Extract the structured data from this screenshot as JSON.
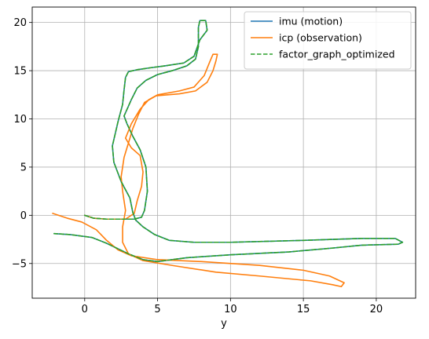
{
  "chart_data": {
    "type": "line",
    "title": "",
    "xlabel": "y",
    "ylabel": "",
    "xlim": [
      -3.6,
      22.7
    ],
    "ylim": [
      -8.6,
      21.6
    ],
    "xticks": [
      0,
      5,
      10,
      15,
      20
    ],
    "yticks": [
      -5,
      0,
      5,
      10,
      15,
      20
    ],
    "grid": true,
    "legend_position": "top-right",
    "series": [
      {
        "name": "imu (motion)",
        "color": "#1f77b4",
        "dashed": false,
        "points": [
          [
            0,
            0
          ],
          [
            0.6,
            -0.3
          ],
          [
            1.5,
            -0.4
          ],
          [
            2.5,
            -0.4
          ],
          [
            3.4,
            -0.4
          ],
          [
            3.9,
            -0.2
          ],
          [
            4.1,
            0.5
          ],
          [
            4.3,
            2.5
          ],
          [
            4.2,
            5.0
          ],
          [
            3.8,
            6.8
          ],
          [
            3.3,
            8.2
          ],
          [
            2.9,
            9.5
          ],
          [
            2.7,
            10.3
          ],
          [
            3.2,
            12.0
          ],
          [
            3.6,
            13.2
          ],
          [
            4.2,
            14.0
          ],
          [
            5.0,
            14.6
          ],
          [
            6.0,
            15.0
          ],
          [
            7.0,
            15.5
          ],
          [
            7.6,
            16.2
          ],
          [
            7.8,
            17.5
          ],
          [
            7.8,
            19.5
          ],
          [
            7.9,
            20.2
          ],
          [
            8.3,
            20.2
          ],
          [
            8.4,
            19.2
          ],
          [
            7.9,
            18.2
          ],
          [
            7.5,
            16.5
          ],
          [
            6.8,
            15.8
          ],
          [
            5.5,
            15.5
          ],
          [
            4.5,
            15.3
          ],
          [
            3.6,
            15.1
          ],
          [
            3.0,
            14.9
          ],
          [
            2.8,
            14.3
          ],
          [
            2.7,
            13.0
          ],
          [
            2.6,
            11.5
          ],
          [
            2.3,
            9.8
          ],
          [
            2.1,
            8.5
          ],
          [
            1.9,
            7.2
          ],
          [
            2.0,
            5.5
          ],
          [
            2.5,
            3.5
          ],
          [
            3.1,
            1.8
          ],
          [
            3.3,
            0.3
          ],
          [
            3.5,
            -0.5
          ],
          [
            4.0,
            -1.2
          ],
          [
            4.8,
            -2.0
          ],
          [
            5.8,
            -2.6
          ],
          [
            7.5,
            -2.8
          ],
          [
            10,
            -2.8
          ],
          [
            15,
            -2.6
          ],
          [
            19,
            -2.4
          ],
          [
            21.3,
            -2.4
          ],
          [
            21.8,
            -2.8
          ],
          [
            21.5,
            -3.0
          ],
          [
            19,
            -3.1
          ],
          [
            17,
            -3.4
          ],
          [
            14,
            -3.8
          ],
          [
            10,
            -4.1
          ],
          [
            7,
            -4.4
          ],
          [
            5.0,
            -4.8
          ],
          [
            4.0,
            -4.6
          ],
          [
            3.0,
            -4.0
          ],
          [
            1.5,
            -2.9
          ],
          [
            0.5,
            -2.3
          ],
          [
            -1,
            -2.0
          ],
          [
            -2.1,
            -1.9
          ]
        ]
      },
      {
        "name": "icp (observation)",
        "color": "#ff7f0e",
        "dashed": false,
        "points": [
          [
            -2.2,
            0.2
          ],
          [
            -1.2,
            -0.3
          ],
          [
            -0.2,
            -0.7
          ],
          [
            0.8,
            -1.5
          ],
          [
            1.5,
            -2.6
          ],
          [
            2.3,
            -3.6
          ],
          [
            3.2,
            -4.2
          ],
          [
            5,
            -4.6
          ],
          [
            8,
            -4.8
          ],
          [
            12,
            -5.2
          ],
          [
            15,
            -5.7
          ],
          [
            16.8,
            -6.3
          ],
          [
            17.8,
            -7.0
          ],
          [
            17.6,
            -7.4
          ],
          [
            17.0,
            -7.2
          ],
          [
            15.5,
            -6.8
          ],
          [
            12,
            -6.3
          ],
          [
            9,
            -5.9
          ],
          [
            6,
            -5.2
          ],
          [
            4,
            -4.7
          ],
          [
            3.0,
            -4.0
          ],
          [
            2.6,
            -2.8
          ],
          [
            2.6,
            -1.2
          ],
          [
            2.8,
            0.5
          ],
          [
            2.6,
            2.5
          ],
          [
            2.5,
            4.0
          ],
          [
            2.7,
            6.0
          ],
          [
            3.0,
            7.5
          ],
          [
            3.3,
            9.0
          ],
          [
            3.7,
            10.5
          ],
          [
            4.1,
            11.7
          ],
          [
            4.9,
            12.4
          ],
          [
            6.5,
            12.6
          ],
          [
            7.6,
            12.9
          ],
          [
            8.4,
            13.8
          ],
          [
            8.8,
            15.0
          ],
          [
            9.0,
            16.0
          ],
          [
            9.1,
            16.7
          ],
          [
            8.8,
            16.7
          ],
          [
            8.6,
            16.0
          ],
          [
            8.2,
            14.5
          ],
          [
            7.5,
            13.3
          ],
          [
            6.5,
            12.9
          ],
          [
            5.0,
            12.5
          ],
          [
            4.4,
            12.0
          ],
          [
            3.8,
            11.0
          ],
          [
            3.2,
            9.5
          ],
          [
            2.8,
            8.0
          ],
          [
            3.2,
            7.0
          ],
          [
            3.8,
            6.2
          ],
          [
            4.0,
            4.5
          ],
          [
            3.9,
            3.0
          ],
          [
            3.6,
            1.5
          ],
          [
            3.4,
            0.2
          ],
          [
            2.8,
            -0.4
          ],
          [
            1.5,
            -0.4
          ],
          [
            0.6,
            -0.3
          ],
          [
            0,
            0
          ]
        ]
      },
      {
        "name": "factor_graph_optimized",
        "color": "#2ca02c",
        "dashed": true,
        "points": [
          [
            0,
            0
          ],
          [
            0.6,
            -0.3
          ],
          [
            1.5,
            -0.4
          ],
          [
            2.5,
            -0.4
          ],
          [
            3.4,
            -0.4
          ],
          [
            3.9,
            -0.2
          ],
          [
            4.1,
            0.5
          ],
          [
            4.3,
            2.5
          ],
          [
            4.2,
            5.0
          ],
          [
            3.8,
            6.8
          ],
          [
            3.3,
            8.2
          ],
          [
            2.9,
            9.5
          ],
          [
            2.7,
            10.3
          ],
          [
            3.2,
            12.0
          ],
          [
            3.6,
            13.2
          ],
          [
            4.2,
            14.0
          ],
          [
            5.0,
            14.6
          ],
          [
            6.0,
            15.0
          ],
          [
            7.0,
            15.5
          ],
          [
            7.6,
            16.2
          ],
          [
            7.8,
            17.5
          ],
          [
            7.8,
            19.5
          ],
          [
            7.9,
            20.2
          ],
          [
            8.3,
            20.2
          ],
          [
            8.4,
            19.2
          ],
          [
            7.9,
            18.2
          ],
          [
            7.5,
            16.5
          ],
          [
            6.8,
            15.8
          ],
          [
            5.5,
            15.5
          ],
          [
            4.5,
            15.3
          ],
          [
            3.6,
            15.1
          ],
          [
            3.0,
            14.9
          ],
          [
            2.8,
            14.3
          ],
          [
            2.7,
            13.0
          ],
          [
            2.6,
            11.5
          ],
          [
            2.3,
            9.8
          ],
          [
            2.1,
            8.5
          ],
          [
            1.9,
            7.2
          ],
          [
            2.0,
            5.5
          ],
          [
            2.5,
            3.5
          ],
          [
            3.1,
            1.8
          ],
          [
            3.3,
            0.3
          ],
          [
            3.5,
            -0.5
          ],
          [
            4.0,
            -1.2
          ],
          [
            4.8,
            -2.0
          ],
          [
            5.8,
            -2.6
          ],
          [
            7.5,
            -2.8
          ],
          [
            10,
            -2.8
          ],
          [
            15,
            -2.6
          ],
          [
            19,
            -2.4
          ],
          [
            21.3,
            -2.4
          ],
          [
            21.8,
            -2.8
          ],
          [
            21.5,
            -3.0
          ],
          [
            19,
            -3.1
          ],
          [
            17,
            -3.4
          ],
          [
            14,
            -3.8
          ],
          [
            10,
            -4.1
          ],
          [
            7,
            -4.4
          ],
          [
            5.0,
            -4.8
          ],
          [
            4.0,
            -4.6
          ],
          [
            3.0,
            -4.0
          ],
          [
            1.5,
            -2.9
          ],
          [
            0.5,
            -2.3
          ],
          [
            -1,
            -2.0
          ],
          [
            -2.1,
            -1.9
          ]
        ]
      }
    ]
  }
}
